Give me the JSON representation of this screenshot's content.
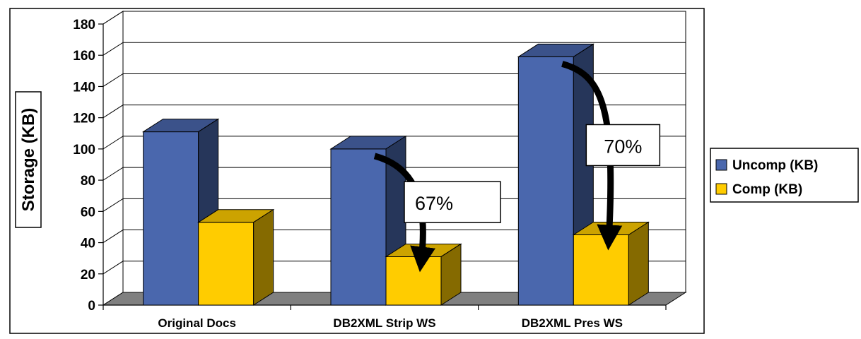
{
  "chart_data": {
    "type": "bar",
    "style": "3d-clustered-column",
    "categories": [
      "Original Docs",
      "DB2XML Strip WS",
      "DB2XML Pres WS"
    ],
    "series": [
      {
        "name": "Uncomp (KB)",
        "values": [
          111,
          100,
          159
        ],
        "color": "#4a67ad"
      },
      {
        "name": "Comp (KB)",
        "values": [
          53,
          31,
          45
        ],
        "color": "#ffcc00"
      }
    ],
    "ylabel": "Storage (KB)",
    "ylim": [
      0,
      180
    ],
    "yticks": [
      0,
      20,
      40,
      60,
      80,
      100,
      120,
      140,
      160,
      180
    ],
    "grid": true,
    "legend": "right",
    "annotations": [
      {
        "text": "67%",
        "category": "DB2XML Strip WS"
      },
      {
        "text": "70%",
        "category": "DB2XML Pres WS"
      }
    ]
  }
}
